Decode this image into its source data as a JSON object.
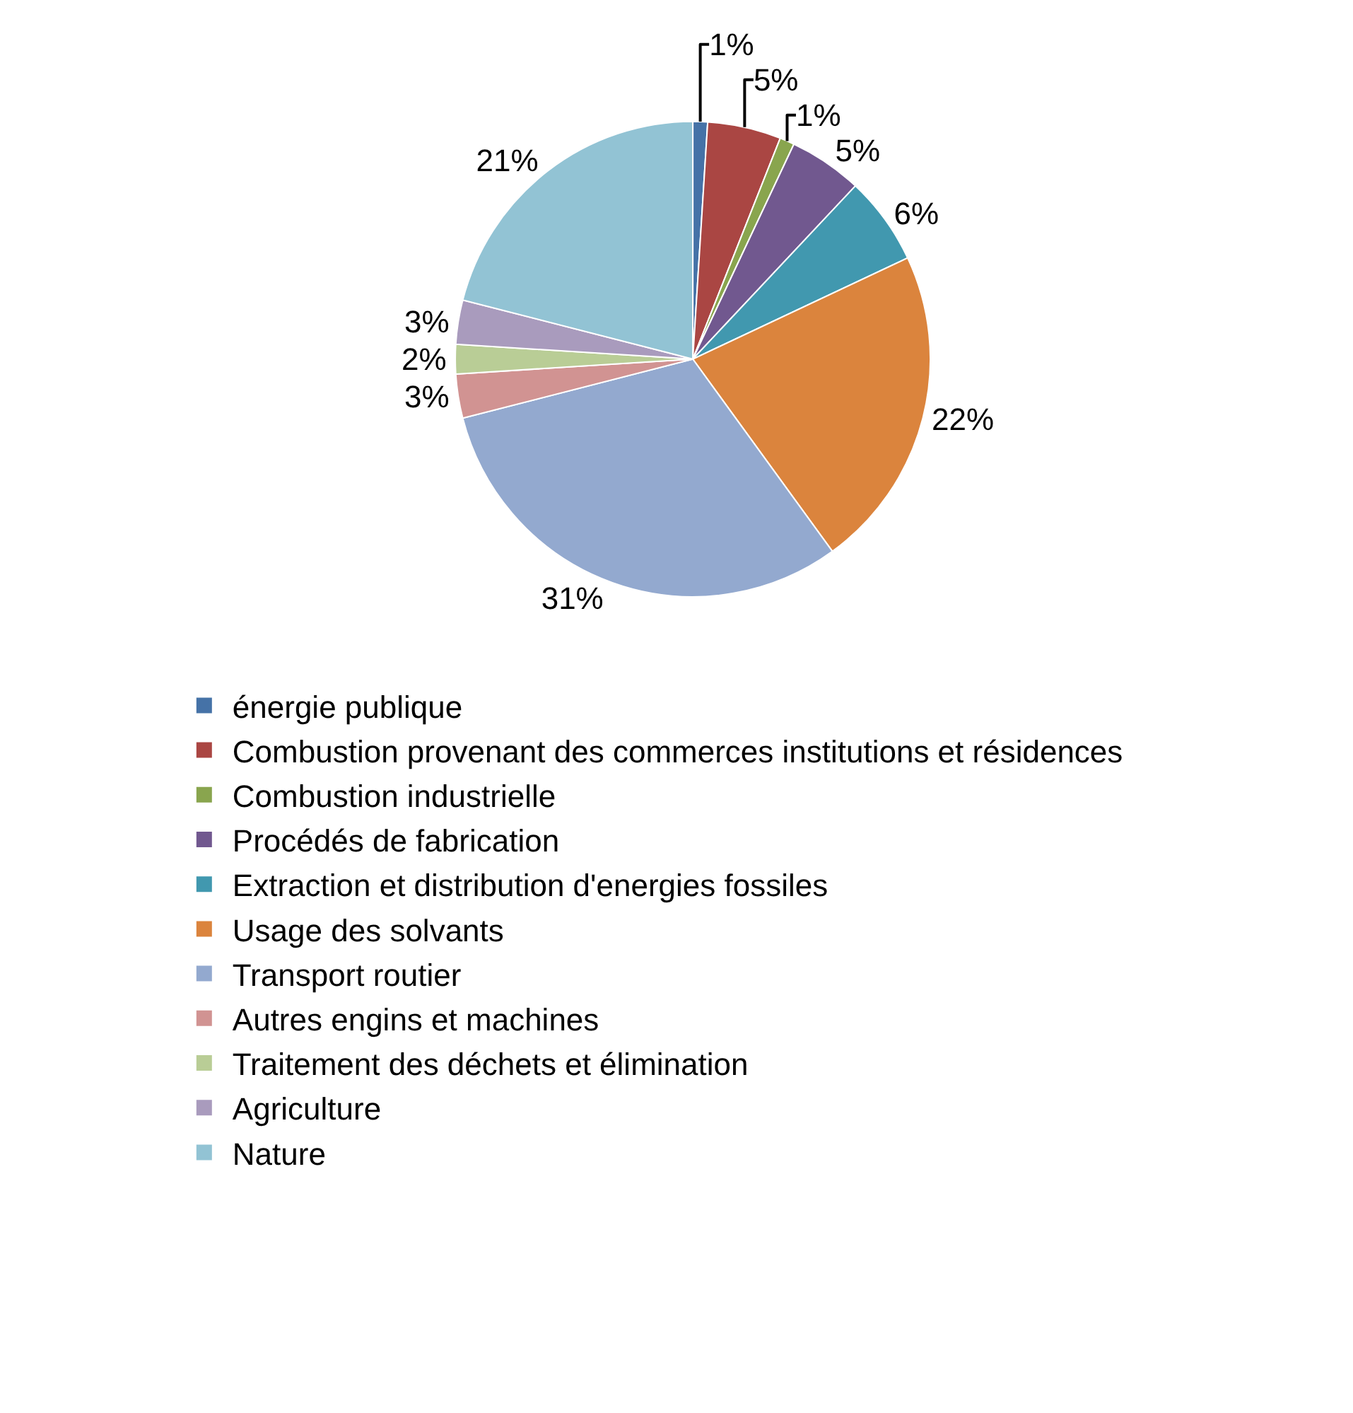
{
  "chart_data": {
    "type": "pie",
    "categories": [
      "énergie publique",
      "Combustion provenant des commerces institutions et résidences",
      "Combustion industrielle",
      "Procédés de fabrication",
      "Extraction et distribution d'energies fossiles",
      "Usage des solvants",
      "Transport routier",
      "Autres engins et machines",
      "Traitement des déchets et élimination",
      "Agriculture",
      "Nature"
    ],
    "values": [
      1,
      5,
      1,
      5,
      6,
      22,
      31,
      3,
      2,
      3,
      21
    ],
    "value_labels": [
      "1%",
      "5%",
      "1%",
      "5%",
      "6%",
      "22%",
      "31%",
      "3%",
      "2%",
      "3%",
      "21%"
    ],
    "colors": [
      "#4572a7",
      "#aa4643",
      "#89a54e",
      "#71588f",
      "#4198af",
      "#db843d",
      "#93a9cf",
      "#d19392",
      "#b9cd96",
      "#a99bbd",
      "#92c3d4"
    ],
    "legend": "bottom"
  }
}
